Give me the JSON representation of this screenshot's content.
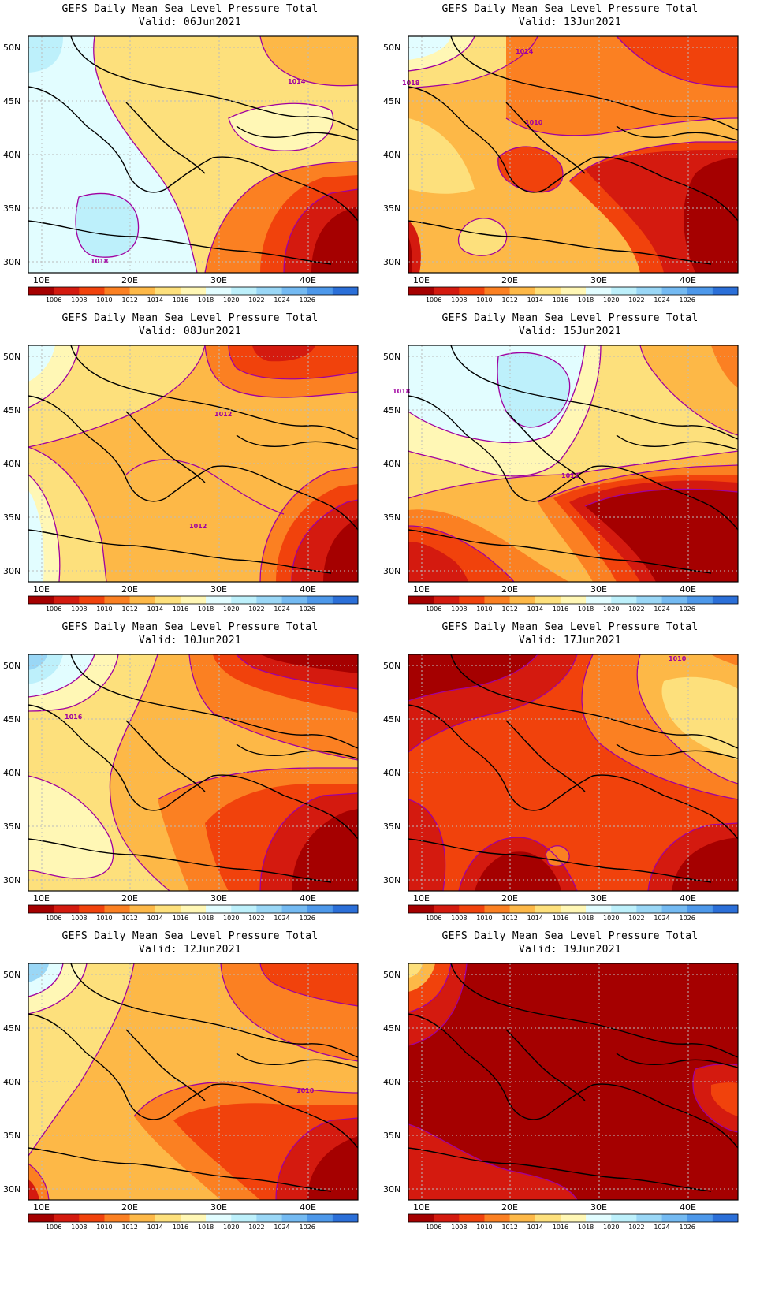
{
  "colorbar": {
    "labels": [
      "1006",
      "1008",
      "1010",
      "1012",
      "1014",
      "1016",
      "1018",
      "1020",
      "1022",
      "1024",
      "1026"
    ],
    "colors": [
      "#a50000",
      "#d41a0f",
      "#f1420c",
      "#fb8022",
      "#fdb847",
      "#fde07c",
      "#fff7b5",
      "#e2fdff",
      "#bdf0fb",
      "#9ad7f6",
      "#74baf2",
      "#4d98ea",
      "#2b6fd8"
    ]
  },
  "axes": {
    "lat_labels": [
      "50N",
      "45N",
      "40N",
      "35N",
      "30N"
    ],
    "lon_labels": [
      "10E",
      "20E",
      "30E",
      "40E"
    ],
    "lat_values": [
      50,
      45,
      40,
      35,
      30
    ],
    "lon_values": [
      10,
      20,
      30,
      40
    ],
    "lon_range": [
      9,
      46
    ],
    "lat_range": [
      29,
      51
    ]
  },
  "panels": [
    {
      "title": "GEFS Daily Mean Sea Level Pressure Total",
      "valid": "Valid: 06Jun2021",
      "contour_labels": [
        "1014",
        "1018"
      ]
    },
    {
      "title": "GEFS Daily Mean Sea Level Pressure Total",
      "valid": "Valid: 13Jun2021",
      "contour_labels": [
        "1014",
        "1018",
        "1010"
      ]
    },
    {
      "title": "GEFS Daily Mean Sea Level Pressure Total",
      "valid": "Valid: 08Jun2021",
      "contour_labels": [
        "1012",
        "1012"
      ]
    },
    {
      "title": "GEFS Daily Mean Sea Level Pressure Total",
      "valid": "Valid: 15Jun2021",
      "contour_labels": [
        "1012",
        "1018"
      ]
    },
    {
      "title": "GEFS Daily Mean Sea Level Pressure Total",
      "valid": "Valid: 10Jun2021",
      "contour_labels": [
        "1016"
      ]
    },
    {
      "title": "GEFS Daily Mean Sea Level Pressure Total",
      "valid": "Valid: 17Jun2021",
      "contour_labels": [
        "1010"
      ]
    },
    {
      "title": "GEFS Daily Mean Sea Level Pressure Total",
      "valid": "Valid: 12Jun2021",
      "contour_labels": [
        "1010"
      ]
    },
    {
      "title": "GEFS Daily Mean Sea Level Pressure Total",
      "valid": "Valid: 19Jun2021",
      "contour_labels": []
    }
  ]
}
